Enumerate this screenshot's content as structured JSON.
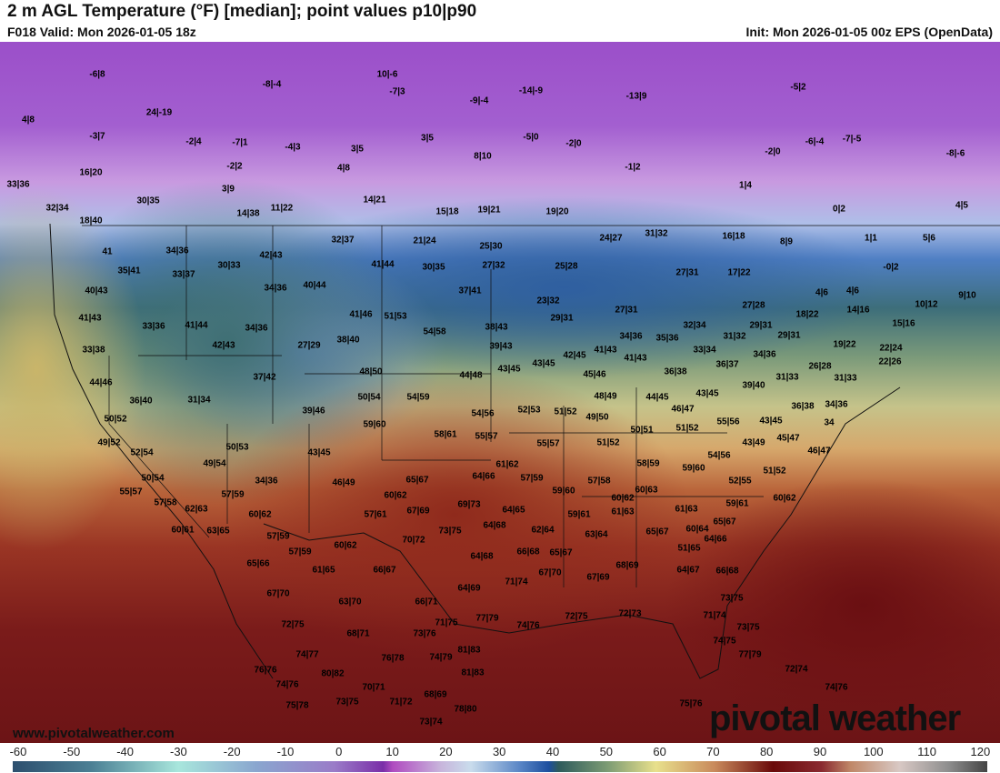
{
  "header": {
    "title": "2 m AGL Temperature (°F) [median]; point values p10|p90",
    "valid": "F018 Valid: Mon 2026-01-05 18z",
    "init": "Init: Mon 2026-01-05 00z EPS (OpenData)"
  },
  "watermark": {
    "site": "www.pivotalweather.com",
    "logo": "pivotal weather"
  },
  "colorbar": {
    "unit": "°F",
    "ticks": [
      "-60",
      "-50",
      "-40",
      "-30",
      "-20",
      "-10",
      "0",
      "10",
      "20",
      "30",
      "40",
      "50",
      "60",
      "70",
      "80",
      "90",
      "100",
      "110",
      "120"
    ]
  },
  "points": [
    "-6|8",
    "-8|-4",
    "10|-6",
    "-7|3",
    "-9|-4",
    "-14|-9",
    "-13|9",
    "-5|2",
    "4|8",
    "24|-19",
    "-3|7",
    "-2|4",
    "-7|1",
    "-4|3",
    "3|5",
    "3|5",
    "-5|0",
    "-2|0",
    "-6|-4",
    "-7|-5",
    "-8|-6",
    "16|20",
    "-2|2",
    "4|8",
    "8|10",
    "-1|2",
    "-2|0",
    "33|36",
    "3|9",
    "1|4",
    "30|35",
    "14|21",
    "32|34",
    "14|38",
    "11|22",
    "15|18",
    "19|21",
    "19|20",
    "0|2",
    "4|5",
    "18|40",
    "21|24",
    "24|27",
    "31|32",
    "16|18",
    "8|9",
    "1|1",
    "5|6",
    "41",
    "34|36",
    "42|43",
    "32|37",
    "25|30",
    "41|44",
    "30|35",
    "27|32",
    "25|28",
    "30|33",
    "35|41",
    "33|37",
    "-0|2",
    "17|22",
    "27|31",
    "40|43",
    "34|36",
    "40|44",
    "37|41",
    "4|6",
    "4|6",
    "10|12",
    "9|10",
    "41|43",
    "33|36",
    "41|44",
    "41|46",
    "51|53",
    "23|32",
    "27|31",
    "27|28",
    "14|16",
    "18|22",
    "15|16",
    "29|31",
    "34|36",
    "27|29",
    "38|40",
    "54|58",
    "38|43",
    "32|34",
    "29|31",
    "29|31",
    "42|43",
    "33|38",
    "34|36",
    "35|36",
    "31|32",
    "39|43",
    "33|34",
    "34|36",
    "19|22",
    "22|24",
    "42|45",
    "41|43",
    "41|43",
    "22|26",
    "37|42",
    "44|48",
    "43|45",
    "43|45",
    "36|38",
    "36|37",
    "26|28",
    "31|33",
    "44|46",
    "48|50",
    "45|46",
    "31|33",
    "39|40",
    "36|40",
    "31|34",
    "50|54",
    "54|59",
    "48|49",
    "44|45",
    "43|45",
    "46|47",
    "36|38",
    "34|36",
    "39|46",
    "52|53",
    "51|52",
    "54|56",
    "49|50",
    "50|52",
    "59|60",
    "55|56",
    "43|45",
    "34",
    "51|52",
    "50|51",
    "58|61",
    "55|57",
    "45|47",
    "46|47",
    "49|52",
    "50|53",
    "55|57",
    "51|52",
    "43|49",
    "52|54",
    "43|45",
    "54|56",
    "49|54",
    "58|59",
    "59|60",
    "51|52",
    "61|62",
    "50|54",
    "34|36",
    "65|67",
    "64|66",
    "57|59",
    "57|58",
    "52|55",
    "46|49",
    "55|57",
    "57|59",
    "60|62",
    "59|60",
    "60|62",
    "60|63",
    "59|61",
    "60|62",
    "57|58",
    "62|63",
    "69|73",
    "67|69",
    "64|65",
    "57|61",
    "60|62",
    "59|61",
    "61|63",
    "61|63",
    "65|67",
    "60|61",
    "63|65",
    "73|75",
    "64|68",
    "62|64",
    "63|64",
    "65|67",
    "60|64",
    "64|66",
    "57|59",
    "70|72",
    "60|62",
    "57|59",
    "66|68",
    "65|67",
    "51|65",
    "64|68",
    "65|66",
    "61|65",
    "66|67",
    "68|69",
    "64|67",
    "66|68",
    "67|70",
    "67|69",
    "71|74",
    "67|70",
    "64|69",
    "63|70",
    "66|71",
    "73|75",
    "71|75",
    "71|74",
    "77|79",
    "72|75",
    "72|73",
    "72|75",
    "74|76",
    "73|75",
    "68|71",
    "73|76",
    "74|75",
    "74|77",
    "76|78",
    "74|79",
    "81|83",
    "77|79",
    "72|74",
    "76|76",
    "80|82",
    "81|83",
    "74|76",
    "70|71",
    "74|76",
    "68|69",
    "78|80",
    "75|78",
    "73|75",
    "71|72",
    "75|76",
    "73|74"
  ]
}
